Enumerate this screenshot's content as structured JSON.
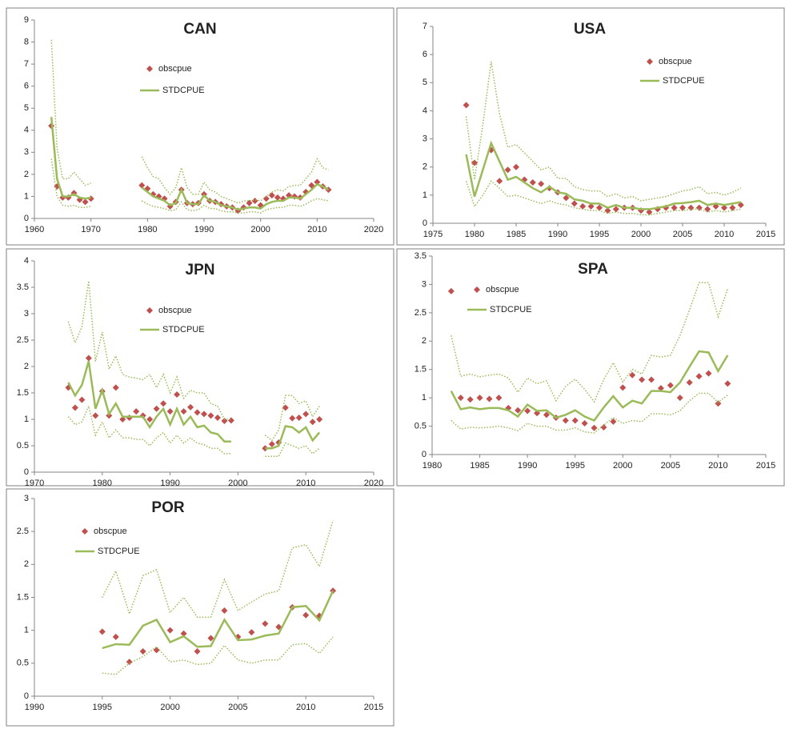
{
  "chart_data": [
    {
      "type": "line",
      "title": "CAN",
      "x": [
        1963,
        1964,
        1965,
        1966,
        1967,
        1968,
        1969,
        1970,
        1971,
        1972,
        1973,
        1974,
        1975,
        1976,
        1977,
        1978,
        1979,
        1980,
        1981,
        1982,
        1983,
        1984,
        1985,
        1986,
        1987,
        1988,
        1989,
        1990,
        1991,
        1992,
        1993,
        1994,
        1995,
        1996,
        1997,
        1998,
        1999,
        2000,
        2001,
        2002,
        2003,
        2004,
        2005,
        2006,
        2007,
        2008,
        2009,
        2010,
        2011,
        2012
      ],
      "series": [
        {
          "name": "obscpue",
          "style": "markers",
          "color": "#c0504d",
          "values": [
            4.2,
            1.45,
            0.95,
            0.95,
            1.15,
            0.85,
            0.75,
            0.9,
            null,
            null,
            null,
            null,
            null,
            null,
            null,
            null,
            1.5,
            1.35,
            1.1,
            1.0,
            0.9,
            0.55,
            0.75,
            1.3,
            0.7,
            0.65,
            0.7,
            1.1,
            0.8,
            0.75,
            0.65,
            0.55,
            0.5,
            0.35,
            0.5,
            0.7,
            0.8,
            0.6,
            0.9,
            1.05,
            0.95,
            0.9,
            1.05,
            1.0,
            0.95,
            1.2,
            1.5,
            1.65,
            1.45,
            1.3
          ]
        },
        {
          "name": "STDCPUE",
          "style": "solid",
          "color": "#9bbb59",
          "values": [
            4.6,
            1.8,
            1.0,
            1.0,
            1.1,
            0.95,
            0.9,
            0.95,
            null,
            null,
            null,
            null,
            null,
            null,
            null,
            null,
            1.4,
            1.2,
            1.0,
            0.9,
            0.8,
            0.6,
            0.7,
            1.3,
            0.7,
            0.65,
            0.65,
            1.05,
            0.8,
            0.75,
            0.6,
            0.55,
            0.5,
            0.4,
            0.45,
            0.5,
            0.5,
            0.45,
            0.65,
            0.75,
            0.8,
            0.8,
            0.95,
            0.95,
            0.9,
            1.1,
            1.3,
            1.55,
            1.45,
            1.3
          ]
        },
        {
          "style": "dotted",
          "color": "#9bbb59",
          "values": [
            8.1,
            3.2,
            1.8,
            1.8,
            2.1,
            1.8,
            1.5,
            1.6,
            null,
            null,
            null,
            null,
            null,
            null,
            null,
            null,
            2.8,
            2.3,
            1.9,
            1.8,
            1.4,
            1.1,
            1.4,
            2.3,
            1.4,
            1.1,
            1.1,
            1.65,
            1.3,
            1.2,
            1.0,
            0.9,
            0.8,
            0.7,
            0.8,
            0.8,
            0.85,
            0.8,
            1.0,
            1.2,
            1.3,
            1.25,
            1.45,
            1.5,
            1.5,
            1.8,
            2.1,
            2.7,
            2.3,
            2.2
          ]
        },
        {
          "style": "dotted",
          "color": "#9bbb59",
          "values": [
            2.7,
            1.0,
            0.6,
            0.55,
            0.6,
            0.5,
            0.5,
            0.55,
            null,
            null,
            null,
            null,
            null,
            null,
            null,
            null,
            0.8,
            0.65,
            0.55,
            0.5,
            0.45,
            0.35,
            0.4,
            0.75,
            0.4,
            0.35,
            0.4,
            0.6,
            0.45,
            0.45,
            0.35,
            0.3,
            0.3,
            0.25,
            0.25,
            0.3,
            0.3,
            0.25,
            0.4,
            0.45,
            0.5,
            0.5,
            0.6,
            0.6,
            0.55,
            0.65,
            0.8,
            0.9,
            0.85,
            0.8
          ]
        }
      ],
      "xlim": [
        1960,
        2020
      ],
      "xticks": [
        1960,
        1970,
        1980,
        1990,
        2000,
        2010,
        2020
      ],
      "ylim": [
        0,
        9
      ],
      "yticks": [
        0,
        1,
        2,
        3,
        4,
        5,
        6,
        7,
        8,
        9
      ]
    },
    {
      "type": "line",
      "title": "USA",
      "x": [
        1979,
        1980,
        1981,
        1982,
        1983,
        1984,
        1985,
        1986,
        1987,
        1988,
        1989,
        1990,
        1991,
        1992,
        1993,
        1994,
        1995,
        1996,
        1997,
        1998,
        1999,
        2000,
        2001,
        2002,
        2003,
        2004,
        2005,
        2006,
        2007,
        2008,
        2009,
        2010,
        2011,
        2012
      ],
      "series": [
        {
          "name": "obscpue",
          "style": "markers",
          "color": "#c0504d",
          "values": [
            4.2,
            2.15,
            null,
            2.6,
            1.5,
            1.9,
            2.0,
            1.55,
            1.45,
            1.4,
            1.25,
            1.1,
            0.9,
            0.7,
            0.6,
            0.6,
            0.55,
            0.45,
            0.5,
            0.55,
            0.55,
            0.45,
            0.4,
            0.5,
            0.55,
            0.55,
            0.55,
            0.55,
            0.55,
            0.5,
            0.6,
            0.55,
            0.55,
            0.65
          ]
        },
        {
          "name": "STDCPUE",
          "style": "solid",
          "color": "#9bbb59",
          "values": [
            2.45,
            0.95,
            1.9,
            2.85,
            2.2,
            1.55,
            1.65,
            1.45,
            1.25,
            1.1,
            1.3,
            1.1,
            1.05,
            0.85,
            0.8,
            0.7,
            0.7,
            0.55,
            0.65,
            0.55,
            0.55,
            0.5,
            0.5,
            0.55,
            0.6,
            0.7,
            0.72,
            0.75,
            0.8,
            0.65,
            0.7,
            0.65,
            0.7,
            0.75
          ]
        },
        {
          "style": "dotted",
          "color": "#9bbb59",
          "values": [
            3.8,
            1.55,
            3.5,
            5.75,
            3.9,
            2.7,
            2.8,
            2.5,
            2.2,
            1.9,
            2.0,
            1.6,
            1.6,
            1.3,
            1.2,
            1.15,
            1.15,
            0.95,
            1.05,
            0.9,
            0.95,
            0.8,
            0.85,
            0.9,
            0.95,
            1.05,
            1.15,
            1.2,
            1.3,
            1.05,
            1.1,
            1.0,
            1.1,
            1.25
          ]
        },
        {
          "style": "dotted",
          "color": "#9bbb59",
          "values": [
            1.5,
            0.6,
            1.0,
            1.5,
            1.25,
            0.95,
            1.0,
            0.9,
            0.8,
            0.7,
            0.8,
            0.7,
            0.65,
            0.55,
            0.5,
            0.45,
            0.45,
            0.35,
            0.4,
            0.35,
            0.35,
            0.3,
            0.3,
            0.35,
            0.4,
            0.45,
            0.45,
            0.5,
            0.5,
            0.4,
            0.45,
            0.4,
            0.45,
            0.5
          ]
        }
      ],
      "xlim": [
        1975,
        2015
      ],
      "xticks": [
        1975,
        1980,
        1985,
        1990,
        1995,
        2000,
        2005,
        2010,
        2015
      ],
      "ylim": [
        0,
        7
      ],
      "yticks": [
        0,
        1,
        2,
        3,
        4,
        5,
        6,
        7
      ]
    },
    {
      "type": "line",
      "title": "JPN",
      "x": [
        1975,
        1976,
        1977,
        1978,
        1979,
        1980,
        1981,
        1982,
        1983,
        1984,
        1985,
        1986,
        1987,
        1988,
        1989,
        1990,
        1991,
        1992,
        1993,
        1994,
        1995,
        1996,
        1997,
        1998,
        1999,
        2000,
        2001,
        2002,
        2003,
        2004,
        2005,
        2006,
        2007,
        2008,
        2009,
        2010,
        2011,
        2012
      ],
      "series": [
        {
          "name": "obscpue",
          "style": "markers",
          "color": "#c0504d",
          "values": [
            1.6,
            1.22,
            1.37,
            2.16,
            1.07,
            1.53,
            1.07,
            1.6,
            1.0,
            1.03,
            1.15,
            1.07,
            1.0,
            1.2,
            1.3,
            1.15,
            1.47,
            1.15,
            1.23,
            1.13,
            1.1,
            1.07,
            1.03,
            0.97,
            0.98,
            null,
            null,
            null,
            null,
            0.45,
            0.53,
            0.56,
            1.22,
            1.02,
            1.03,
            1.1,
            0.95,
            1.0
          ]
        },
        {
          "name": "STDCPUE",
          "style": "solid",
          "color": "#9bbb59",
          "values": [
            1.7,
            1.45,
            1.65,
            2.1,
            1.2,
            1.55,
            1.1,
            1.3,
            1.05,
            1.05,
            1.05,
            1.05,
            0.85,
            1.05,
            1.2,
            0.9,
            1.2,
            0.9,
            1.05,
            0.85,
            0.88,
            0.75,
            0.72,
            0.58,
            0.58,
            null,
            null,
            null,
            null,
            0.45,
            0.45,
            0.5,
            0.87,
            0.85,
            0.75,
            0.85,
            0.6,
            0.75
          ]
        },
        {
          "style": "dotted",
          "color": "#9bbb59",
          "values": [
            2.85,
            2.45,
            2.75,
            3.62,
            2.1,
            2.65,
            1.95,
            2.2,
            1.85,
            1.8,
            1.78,
            1.75,
            1.85,
            1.6,
            1.85,
            1.5,
            1.8,
            1.4,
            1.55,
            1.5,
            1.5,
            1.3,
            1.25,
            1.0,
            1.0,
            null,
            null,
            null,
            null,
            0.7,
            0.6,
            0.8,
            1.45,
            1.45,
            1.3,
            1.35,
            1.05,
            1.25
          ]
        },
        {
          "style": "dotted",
          "color": "#9bbb59",
          "values": [
            1.05,
            0.9,
            0.95,
            1.25,
            0.7,
            0.95,
            0.65,
            0.8,
            0.65,
            0.65,
            0.62,
            0.62,
            0.5,
            0.65,
            0.75,
            0.55,
            0.7,
            0.55,
            0.65,
            0.55,
            0.52,
            0.45,
            0.45,
            0.35,
            0.35,
            null,
            null,
            null,
            null,
            0.3,
            0.3,
            0.3,
            0.55,
            0.5,
            0.45,
            0.5,
            0.35,
            0.45
          ]
        }
      ],
      "xlim": [
        1970,
        2020
      ],
      "xticks": [
        1970,
        1980,
        1990,
        2000,
        2010,
        2020
      ],
      "ylim": [
        0,
        4
      ],
      "yticks": [
        0,
        0.5,
        1,
        1.5,
        2,
        2.5,
        3,
        3.5,
        4
      ]
    },
    {
      "type": "line",
      "title": "SPA",
      "x": [
        1982,
        1983,
        1984,
        1985,
        1986,
        1987,
        1988,
        1989,
        1990,
        1991,
        1992,
        1993,
        1994,
        1995,
        1996,
        1997,
        1998,
        1999,
        2000,
        2001,
        2002,
        2003,
        2004,
        2005,
        2006,
        2007,
        2008,
        2009,
        2010,
        2011
      ],
      "series": [
        {
          "name": "obscpue",
          "style": "markers",
          "color": "#c0504d",
          "values": [
            2.88,
            1.0,
            0.97,
            1.0,
            0.98,
            1.0,
            0.82,
            0.78,
            0.77,
            0.73,
            0.7,
            0.65,
            0.6,
            0.6,
            0.55,
            0.47,
            0.48,
            0.58,
            1.18,
            1.4,
            1.32,
            1.32,
            1.17,
            1.22,
            1.0,
            1.27,
            1.38,
            1.43,
            0.9,
            1.25
          ]
        },
        {
          "name": "STDCPUE",
          "style": "solid",
          "color": "#9bbb59",
          "values": [
            1.12,
            0.8,
            0.83,
            0.8,
            0.82,
            0.82,
            0.78,
            0.67,
            0.88,
            0.77,
            0.78,
            0.65,
            0.7,
            0.78,
            0.67,
            0.6,
            0.83,
            1.03,
            0.83,
            0.95,
            0.9,
            1.12,
            1.12,
            1.1,
            1.27,
            1.55,
            1.82,
            1.8,
            1.47,
            1.75
          ]
        },
        {
          "style": "dotted",
          "color": "#9bbb59",
          "values": [
            2.1,
            1.38,
            1.42,
            1.37,
            1.4,
            1.42,
            1.35,
            1.1,
            1.35,
            1.25,
            1.3,
            0.95,
            1.2,
            1.33,
            1.15,
            0.93,
            1.32,
            1.62,
            1.28,
            1.5,
            1.42,
            1.75,
            1.72,
            1.75,
            2.1,
            2.55,
            3.03,
            3.03,
            2.43,
            2.92
          ]
        },
        {
          "style": "dotted",
          "color": "#9bbb59",
          "values": [
            0.6,
            0.45,
            0.48,
            0.47,
            0.48,
            0.5,
            0.47,
            0.42,
            0.55,
            0.5,
            0.5,
            0.43,
            0.43,
            0.47,
            0.4,
            0.38,
            0.52,
            0.65,
            0.55,
            0.6,
            0.58,
            0.72,
            0.72,
            0.7,
            0.77,
            0.95,
            1.08,
            1.08,
            0.92,
            1.05
          ]
        }
      ],
      "xlim": [
        1980,
        2015
      ],
      "xticks": [
        1980,
        1985,
        1990,
        1995,
        2000,
        2005,
        2010,
        2015
      ],
      "ylim": [
        0,
        3.5
      ],
      "yticks": [
        0,
        0.5,
        1,
        1.5,
        2,
        2.5,
        3,
        3.5
      ]
    },
    {
      "type": "line",
      "title": "POR",
      "x": [
        1995,
        1996,
        1997,
        1998,
        1999,
        2000,
        2001,
        2002,
        2003,
        2004,
        2005,
        2006,
        2007,
        2008,
        2009,
        2010,
        2011,
        2012
      ],
      "series": [
        {
          "name": "obscpue",
          "style": "markers",
          "color": "#c0504d",
          "values": [
            0.98,
            0.9,
            0.52,
            0.68,
            0.7,
            1.0,
            0.95,
            0.68,
            0.88,
            1.3,
            0.9,
            0.97,
            1.1,
            1.05,
            1.35,
            1.23,
            1.22,
            1.6
          ]
        },
        {
          "name": "STDCPUE",
          "style": "solid",
          "color": "#9bbb59",
          "values": [
            0.73,
            0.79,
            0.78,
            1.07,
            1.16,
            0.82,
            0.91,
            0.75,
            0.76,
            1.16,
            0.85,
            0.86,
            0.92,
            0.95,
            1.35,
            1.37,
            1.15,
            1.6
          ]
        },
        {
          "style": "dotted",
          "color": "#9bbb59",
          "values": [
            1.5,
            1.9,
            1.25,
            1.83,
            1.92,
            1.27,
            1.5,
            1.2,
            1.2,
            1.77,
            1.3,
            1.43,
            1.55,
            1.6,
            2.25,
            2.3,
            1.97,
            2.67
          ]
        },
        {
          "style": "dotted",
          "color": "#9bbb59",
          "values": [
            0.35,
            0.33,
            0.5,
            0.6,
            0.75,
            0.52,
            0.55,
            0.48,
            0.5,
            0.77,
            0.55,
            0.5,
            0.55,
            0.55,
            0.78,
            0.8,
            0.65,
            0.9
          ]
        }
      ],
      "xlim": [
        1990,
        2015
      ],
      "xticks": [
        1990,
        1995,
        2000,
        2005,
        2010,
        2015
      ],
      "ylim": [
        0,
        3
      ],
      "yticks": [
        0,
        0.5,
        1,
        1.5,
        2,
        2.5,
        3
      ]
    }
  ]
}
